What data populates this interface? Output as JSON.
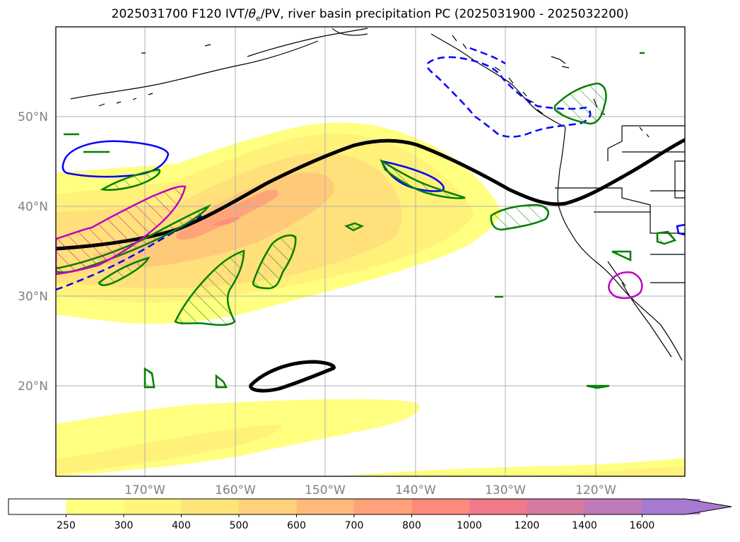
{
  "title": {
    "prefix": "2025031700 F120 IVT/",
    "theta": "θ",
    "theta_sub": "e",
    "suffix": "/PV, river basin precipitation PC (2025031900 - 2025032200)"
  },
  "map": {
    "latitude_labels": [
      "50°N",
      "40°N",
      "30°N",
      "20°N"
    ],
    "longitude_labels": [
      "170°W",
      "160°W",
      "150°W",
      "140°W",
      "130°W",
      "120°W"
    ],
    "grid": true
  },
  "colorbar": {
    "levels": [
      "250",
      "300",
      "400",
      "500",
      "600",
      "700",
      "800",
      "1000",
      "1200",
      "1400",
      "1600"
    ],
    "colors": [
      "#ffffff",
      "#ffff80",
      "#fff57a",
      "#ffe47a",
      "#ffd27a",
      "#ffba7a",
      "#ffa27a",
      "#ff8a7a",
      "#f07a8a",
      "#d77aa2",
      "#bf7aba",
      "#a77ad2"
    ],
    "extend": "max"
  },
  "colors": {
    "ivt_fill_low": "#ffff80",
    "ivt_fill_mid": "#ffe47a",
    "ivt_fill_high": "#ffb87a",
    "pv_contour": "#000000",
    "theta_e_contour": "#0000ff",
    "precip_green": "#008000",
    "precip_magenta": "#c000c0",
    "coastline": "#000000",
    "gridline": "#b0b0b0"
  }
}
